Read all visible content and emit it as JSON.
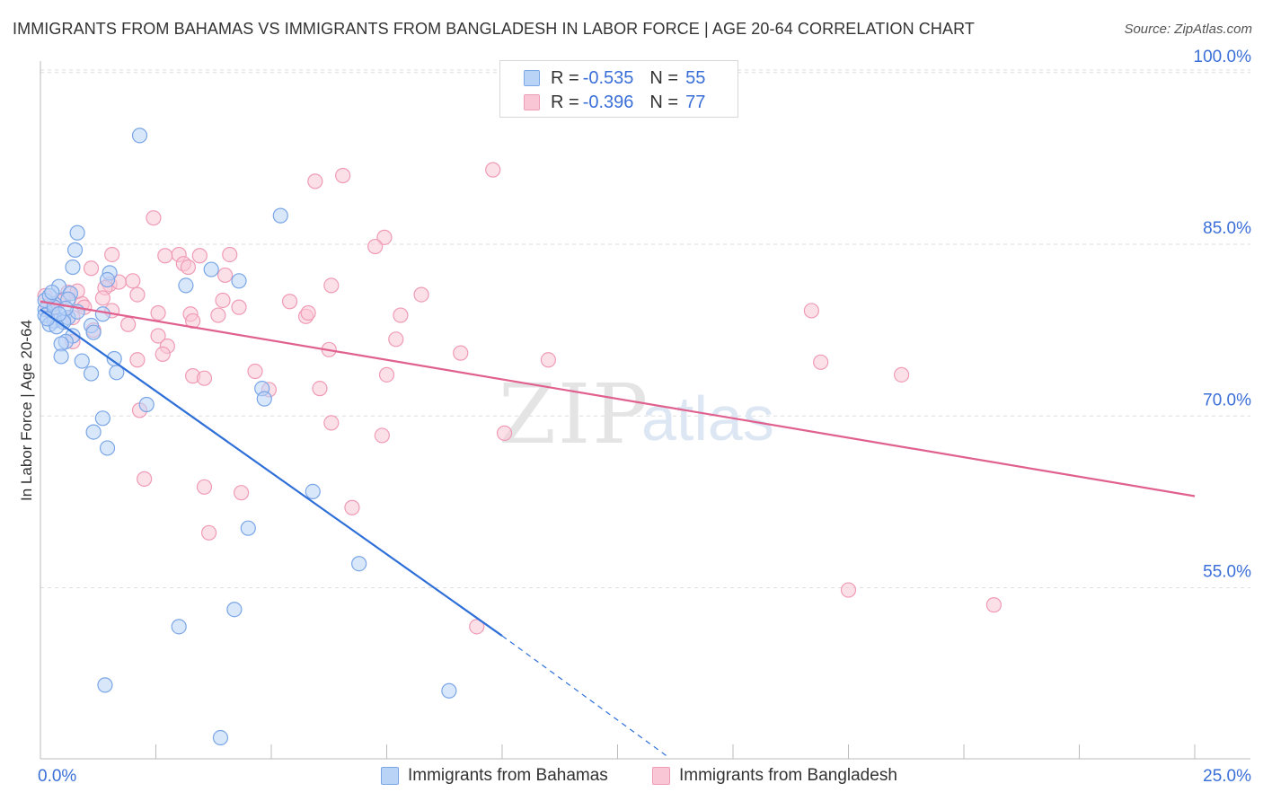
{
  "title": "IMMIGRANTS FROM BAHAMAS VS IMMIGRANTS FROM BANGLADESH IN LABOR FORCE | AGE 20-64 CORRELATION CHART",
  "source": "Source: ZipAtlas.com",
  "watermark": {
    "zip": "ZIP",
    "atlas": "atlas"
  },
  "legend": {
    "r_label": "R =",
    "n_label": "N =",
    "rows": [
      {
        "r": "-0.535",
        "n": "55"
      },
      {
        "r": "-0.396",
        "n": "77"
      }
    ]
  },
  "colors": {
    "bahamas_fill": "#b9d3f7",
    "bahamas_stroke": "#7aa6e6",
    "bahamas_line": "#2e6fd8",
    "bangladesh_fill": "#f9c6d5",
    "bangladesh_stroke": "#ef9bb6",
    "bangladesh_line": "#e0608e",
    "tick_label": "#3a6fd8",
    "grid": "#dddddd"
  },
  "chart_data": {
    "type": "scatter",
    "xlabel": "",
    "ylabel": "In Labor Force | Age 20-64",
    "xlim": [
      0,
      25
    ],
    "ylim": [
      40,
      104
    ],
    "x_tick_labels": [
      {
        "value": 0,
        "label": "0.0%"
      },
      {
        "value": 25,
        "label": "25.0%"
      }
    ],
    "y_tick_labels": [
      {
        "value": 55,
        "label": "55.0%"
      },
      {
        "value": 70,
        "label": "70.0%"
      },
      {
        "value": 85,
        "label": "85.0%"
      },
      {
        "value": 100,
        "label": "100.0%"
      }
    ],
    "x_minor_ticks": [
      2.5,
      5,
      7.5,
      10,
      12.5,
      15,
      17.5,
      20,
      22.5
    ],
    "grid": true,
    "legend_position": "top-center",
    "series": [
      {
        "name": "Immigrants from Bahamas",
        "color": "#2e6fd8",
        "points": [
          [
            2.15,
            94.5
          ],
          [
            0.8,
            86.0
          ],
          [
            0.75,
            84.5
          ],
          [
            1.5,
            82.5
          ],
          [
            0.7,
            83.0
          ],
          [
            0.4,
            81.3
          ],
          [
            1.45,
            81.9
          ],
          [
            0.65,
            80.7
          ],
          [
            0.3,
            79.8
          ],
          [
            0.1,
            79.3
          ],
          [
            0.1,
            78.8
          ],
          [
            0.3,
            78.3
          ],
          [
            0.2,
            78.0
          ],
          [
            0.5,
            78.4
          ],
          [
            0.6,
            78.6
          ],
          [
            1.35,
            78.9
          ],
          [
            1.1,
            77.9
          ],
          [
            1.15,
            77.3
          ],
          [
            0.7,
            77.0
          ],
          [
            0.55,
            76.5
          ],
          [
            0.45,
            76.3
          ],
          [
            0.9,
            74.8
          ],
          [
            1.6,
            75.0
          ],
          [
            1.65,
            73.8
          ],
          [
            1.1,
            73.7
          ],
          [
            0.45,
            75.2
          ],
          [
            5.2,
            87.5
          ],
          [
            3.7,
            82.8
          ],
          [
            4.3,
            81.8
          ],
          [
            3.15,
            81.4
          ],
          [
            4.8,
            72.4
          ],
          [
            4.85,
            71.5
          ],
          [
            2.3,
            71.0
          ],
          [
            1.35,
            69.8
          ],
          [
            1.15,
            68.6
          ],
          [
            1.45,
            67.2
          ],
          [
            5.9,
            63.4
          ],
          [
            4.5,
            60.2
          ],
          [
            6.9,
            57.1
          ],
          [
            4.2,
            53.1
          ],
          [
            3.0,
            51.6
          ],
          [
            8.85,
            46.0
          ],
          [
            1.4,
            46.5
          ],
          [
            3.9,
            41.9
          ],
          [
            0.1,
            80.1
          ],
          [
            0.3,
            79.5
          ],
          [
            0.5,
            78.2
          ],
          [
            0.2,
            80.5
          ],
          [
            0.35,
            77.8
          ],
          [
            0.6,
            80.2
          ],
          [
            0.15,
            78.5
          ],
          [
            0.8,
            79.1
          ],
          [
            0.25,
            80.8
          ],
          [
            0.55,
            79.4
          ],
          [
            0.4,
            78.9
          ]
        ],
        "trend": {
          "x": [
            0,
            10
          ],
          "y": [
            79.3,
            50.8
          ]
        },
        "trend_dashed": {
          "x": [
            10,
            13.6
          ],
          "y": [
            50.8,
            40.2
          ]
        }
      },
      {
        "name": "Immigrants from Bangladesh",
        "color": "#e0608e",
        "points": [
          [
            9.8,
            91.5
          ],
          [
            6.55,
            91.0
          ],
          [
            5.95,
            90.5
          ],
          [
            2.45,
            87.3
          ],
          [
            7.45,
            85.6
          ],
          [
            7.25,
            84.8
          ],
          [
            1.55,
            84.1
          ],
          [
            2.7,
            84.0
          ],
          [
            3.0,
            84.1
          ],
          [
            4.1,
            84.1
          ],
          [
            3.45,
            84.0
          ],
          [
            3.1,
            83.3
          ],
          [
            3.2,
            83.0
          ],
          [
            1.1,
            82.9
          ],
          [
            2.0,
            81.8
          ],
          [
            1.5,
            81.5
          ],
          [
            1.7,
            81.7
          ],
          [
            1.4,
            81.2
          ],
          [
            4.0,
            82.3
          ],
          [
            6.3,
            81.4
          ],
          [
            8.25,
            80.6
          ],
          [
            2.1,
            80.6
          ],
          [
            0.6,
            80.8
          ],
          [
            1.35,
            80.3
          ],
          [
            5.4,
            80.0
          ],
          [
            3.95,
            80.1
          ],
          [
            0.9,
            79.8
          ],
          [
            1.55,
            79.2
          ],
          [
            4.3,
            79.5
          ],
          [
            5.75,
            78.7
          ],
          [
            5.8,
            79.0
          ],
          [
            7.8,
            78.8
          ],
          [
            3.25,
            78.9
          ],
          [
            3.85,
            78.8
          ],
          [
            2.55,
            79.0
          ],
          [
            3.3,
            78.3
          ],
          [
            1.9,
            78.0
          ],
          [
            1.15,
            77.5
          ],
          [
            2.55,
            77.0
          ],
          [
            7.7,
            76.7
          ],
          [
            2.75,
            76.1
          ],
          [
            0.7,
            76.5
          ],
          [
            6.25,
            75.8
          ],
          [
            9.1,
            75.5
          ],
          [
            11.0,
            74.9
          ],
          [
            16.7,
            79.2
          ],
          [
            16.9,
            74.7
          ],
          [
            18.65,
            73.6
          ],
          [
            2.1,
            74.9
          ],
          [
            2.65,
            75.4
          ],
          [
            4.65,
            73.9
          ],
          [
            3.3,
            73.5
          ],
          [
            3.55,
            73.3
          ],
          [
            7.5,
            73.6
          ],
          [
            6.05,
            72.4
          ],
          [
            4.95,
            72.3
          ],
          [
            2.15,
            70.5
          ],
          [
            6.3,
            69.4
          ],
          [
            7.4,
            68.3
          ],
          [
            10.05,
            68.5
          ],
          [
            2.25,
            64.5
          ],
          [
            3.55,
            63.8
          ],
          [
            4.35,
            63.3
          ],
          [
            6.75,
            62.0
          ],
          [
            3.65,
            59.8
          ],
          [
            17.5,
            54.8
          ],
          [
            20.65,
            53.5
          ],
          [
            9.45,
            51.6
          ],
          [
            0.1,
            80.5
          ],
          [
            0.3,
            79.8
          ],
          [
            0.5,
            80.2
          ],
          [
            0.2,
            79.2
          ],
          [
            0.8,
            80.9
          ],
          [
            0.4,
            80.0
          ],
          [
            0.15,
            79.6
          ],
          [
            0.7,
            78.6
          ],
          [
            0.95,
            79.5
          ]
        ],
        "trend": {
          "x": [
            0,
            25
          ],
          "y": [
            80.0,
            63.0
          ]
        }
      }
    ]
  },
  "bottom_legend": [
    {
      "label": "Immigrants from Bahamas"
    },
    {
      "label": "Immigrants from Bangladesh"
    }
  ]
}
